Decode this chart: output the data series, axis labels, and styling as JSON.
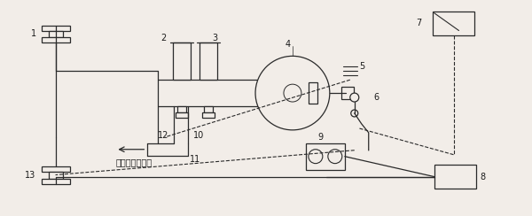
{
  "bg_color": "#f2ede8",
  "line_color": "#2a2a2a",
  "text_color": "#1a1a1a",
  "fig_width": 6.0,
  "fig_height": 2.44,
  "dpi": 100,
  "label_pipe": "通发动机进气管"
}
